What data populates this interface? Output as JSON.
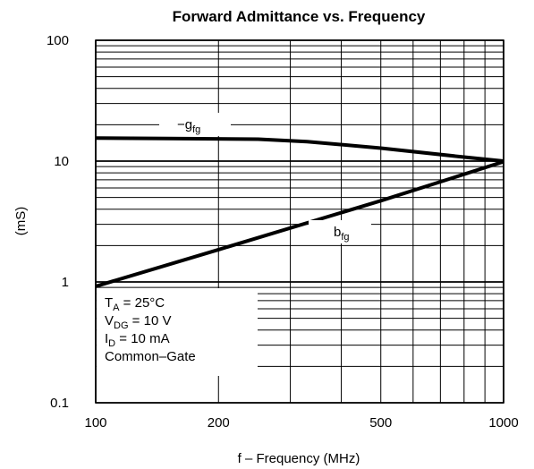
{
  "chart_data": {
    "type": "line",
    "title": "Forward Admittance vs. Frequency",
    "xlabel": "f – Frequency (MHz)",
    "ylabel": "(mS)",
    "xscale": "log",
    "yscale": "log",
    "xlim": [
      100,
      1000
    ],
    "ylim": [
      0.1,
      100
    ],
    "x_tick_labels": [
      "100",
      "200",
      "500",
      "1000"
    ],
    "y_tick_labels": [
      "100",
      "10",
      "1",
      "0.1"
    ],
    "grid": true,
    "series": [
      {
        "name": "−g",
        "subscript": "fg",
        "x": [
          100,
          150,
          250,
          330,
          500,
          800,
          1000
        ],
        "values": [
          15.5,
          15.4,
          15.2,
          14.5,
          12.8,
          10.8,
          10.0
        ]
      },
      {
        "name": "b",
        "subscript": "fg",
        "x": [
          100,
          200,
          500,
          1000
        ],
        "values": [
          0.92,
          1.85,
          4.7,
          9.9
        ]
      }
    ],
    "conditions": [
      {
        "main": "T",
        "sub": "A",
        "rest": " = 25°C"
      },
      {
        "main": "V",
        "sub": "DG",
        "rest": " = 10 V"
      },
      {
        "main": "I",
        "sub": "D",
        "rest": " = 10 mA"
      },
      {
        "main": "Common–Gate",
        "sub": "",
        "rest": ""
      }
    ]
  }
}
